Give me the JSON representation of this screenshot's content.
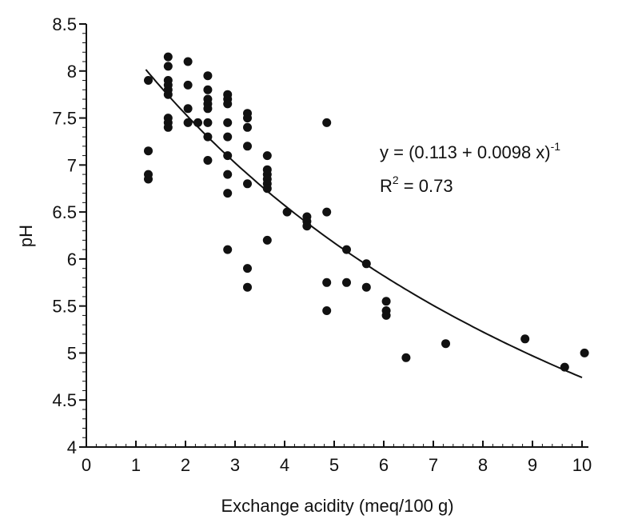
{
  "chart_data": {
    "type": "scatter",
    "xlabel": "Exchange acidity (meq/100 g)",
    "ylabel": "pH",
    "xlim": [
      0,
      10
    ],
    "ylim": [
      4,
      8.5
    ],
    "x_ticks": [
      "0",
      "1",
      "2",
      "3",
      "4",
      "5",
      "6",
      "7",
      "8",
      "9",
      "10"
    ],
    "y_ticks": [
      "4",
      "4.5",
      "5",
      "5.5",
      "6",
      "6.5",
      "7",
      "7.5",
      "8",
      "8.5"
    ],
    "grid": false,
    "points": [
      [
        1.25,
        7.9
      ],
      [
        1.25,
        7.15
      ],
      [
        1.25,
        6.9
      ],
      [
        1.25,
        6.85
      ],
      [
        1.65,
        8.15
      ],
      [
        1.65,
        8.05
      ],
      [
        1.65,
        7.9
      ],
      [
        1.65,
        7.85
      ],
      [
        1.65,
        7.8
      ],
      [
        1.65,
        7.75
      ],
      [
        1.65,
        7.5
      ],
      [
        1.65,
        7.45
      ],
      [
        1.65,
        7.4
      ],
      [
        2.05,
        8.1
      ],
      [
        2.05,
        7.85
      ],
      [
        2.05,
        7.6
      ],
      [
        2.05,
        7.45
      ],
      [
        2.25,
        7.45
      ],
      [
        2.45,
        7.95
      ],
      [
        2.45,
        7.8
      ],
      [
        2.45,
        7.7
      ],
      [
        2.45,
        7.65
      ],
      [
        2.45,
        7.6
      ],
      [
        2.45,
        7.45
      ],
      [
        2.45,
        7.3
      ],
      [
        2.45,
        7.05
      ],
      [
        2.85,
        7.75
      ],
      [
        2.85,
        7.7
      ],
      [
        2.85,
        7.65
      ],
      [
        2.85,
        7.45
      ],
      [
        2.85,
        7.3
      ],
      [
        2.85,
        7.1
      ],
      [
        2.85,
        6.9
      ],
      [
        2.85,
        6.7
      ],
      [
        2.85,
        6.1
      ],
      [
        3.25,
        7.55
      ],
      [
        3.25,
        7.5
      ],
      [
        3.25,
        7.4
      ],
      [
        3.25,
        7.2
      ],
      [
        3.25,
        6.8
      ],
      [
        3.25,
        5.9
      ],
      [
        3.25,
        5.7
      ],
      [
        3.65,
        7.1
      ],
      [
        3.65,
        6.95
      ],
      [
        3.65,
        6.9
      ],
      [
        3.65,
        6.85
      ],
      [
        3.65,
        6.8
      ],
      [
        3.65,
        6.75
      ],
      [
        3.65,
        6.2
      ],
      [
        4.05,
        6.5
      ],
      [
        4.45,
        6.45
      ],
      [
        4.45,
        6.4
      ],
      [
        4.45,
        6.35
      ],
      [
        4.85,
        7.45
      ],
      [
        4.85,
        6.5
      ],
      [
        4.85,
        5.75
      ],
      [
        4.85,
        5.45
      ],
      [
        5.25,
        6.1
      ],
      [
        5.25,
        5.75
      ],
      [
        5.65,
        5.95
      ],
      [
        5.65,
        5.7
      ],
      [
        6.05,
        5.55
      ],
      [
        6.05,
        5.45
      ],
      [
        6.05,
        5.4
      ],
      [
        6.45,
        4.95
      ],
      [
        7.25,
        5.1
      ],
      [
        8.85,
        5.15
      ],
      [
        9.65,
        4.85
      ],
      [
        10.05,
        5.0
      ]
    ],
    "fit": {
      "a": 0.113,
      "b": 0.0098,
      "x_range": [
        1.2,
        10.0
      ]
    },
    "annotation": {
      "equation_main": "y = (0.113 + 0.0098 x)",
      "equation_exp": "-1",
      "r2_prefix": "R",
      "r2_sup": "2",
      "r2_value": " = 0.73"
    }
  }
}
